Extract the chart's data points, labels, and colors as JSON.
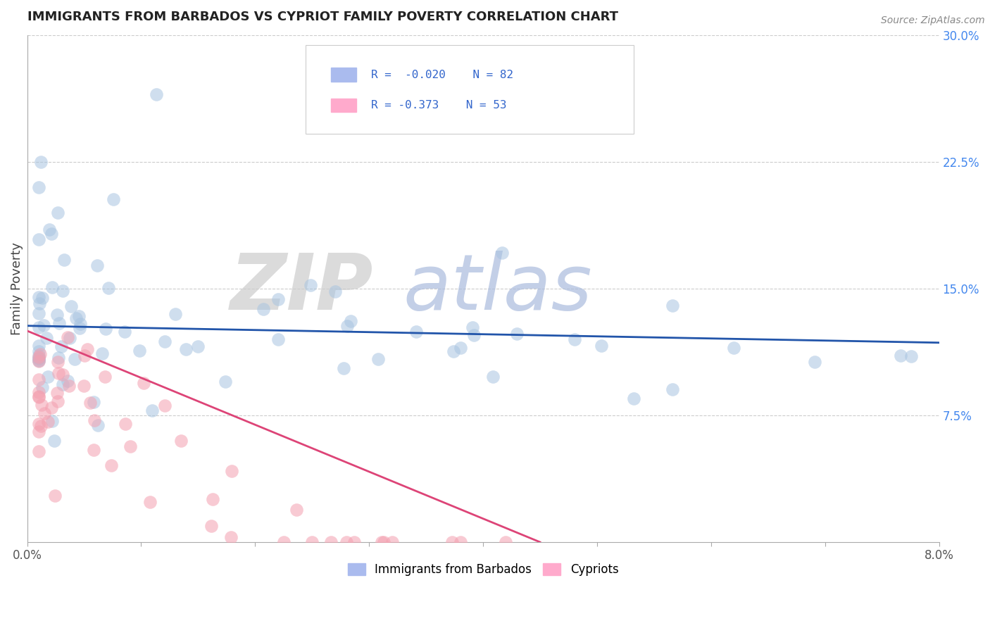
{
  "title": "IMMIGRANTS FROM BARBADOS VS CYPRIOT FAMILY POVERTY CORRELATION CHART",
  "source": "Source: ZipAtlas.com",
  "xlabel": "",
  "ylabel": "Family Poverty",
  "legend_labels": [
    "Immigrants from Barbados",
    "Cypriots"
  ],
  "r_values": [
    -0.02,
    -0.373
  ],
  "n_values": [
    82,
    53
  ],
  "blue_color": "#A8C4E0",
  "pink_color": "#F4A0B0",
  "blue_line_color": "#2255AA",
  "pink_line_color": "#DD4477",
  "xlim": [
    0.0,
    0.08
  ],
  "ylim": [
    0.0,
    0.3
  ],
  "ytick_vals": [
    0.075,
    0.15,
    0.225,
    0.3
  ],
  "ytick_labels": [
    "7.5%",
    "15.0%",
    "22.5%",
    "30.0%"
  ],
  "blue_trend_x": [
    0.0,
    0.08
  ],
  "blue_trend_y": [
    0.128,
    0.118
  ],
  "pink_trend_x": [
    0.0,
    0.045
  ],
  "pink_trend_y": [
    0.125,
    0.0
  ],
  "seed": 42
}
